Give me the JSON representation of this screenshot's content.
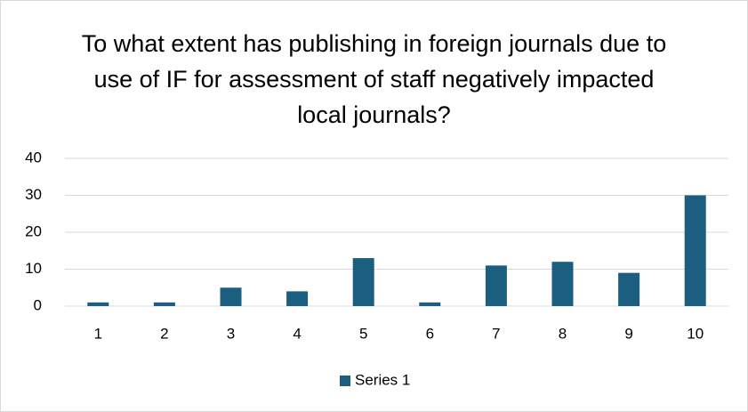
{
  "chart_data": {
    "type": "bar",
    "title": "To what extent has publishing in foreign journals due to use of IF for assessment of staff negatively impacted local journals?",
    "categories": [
      "1",
      "2",
      "3",
      "4",
      "5",
      "6",
      "7",
      "8",
      "9",
      "10"
    ],
    "series": [
      {
        "name": "Series 1",
        "color": "#1b5e80",
        "values": [
          1,
          1,
          5,
          4,
          13,
          1,
          11,
          12,
          9,
          30
        ]
      }
    ],
    "ylim": [
      0,
      40
    ],
    "yticks": [
      0,
      10,
      20,
      30,
      40
    ],
    "grid": true,
    "legend": "bottom"
  }
}
